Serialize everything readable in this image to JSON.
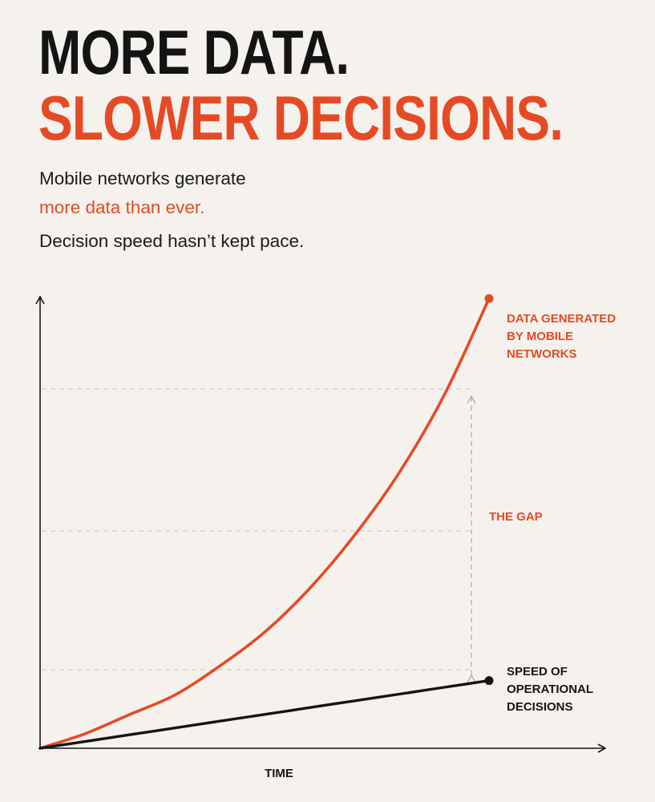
{
  "header": {
    "title_line1": "MORE DATA.",
    "title_line2": "SLOWER DECISIONS."
  },
  "subtitle": {
    "line1": "Mobile networks generate",
    "line2": "more data than ever.",
    "line3": "Decision speed hasn’t kept pace."
  },
  "colors": {
    "background": "#f5f2ee",
    "dark": "#141414",
    "accent": "#e64a24",
    "grid": "#c9c6c2",
    "gap_arrow": "#b5b2ae"
  },
  "chart_data": {
    "type": "line",
    "xlabel": "TIME",
    "ylabel": "",
    "x": [
      0,
      0.1,
      0.2,
      0.3,
      0.4,
      0.5,
      0.6,
      0.7,
      0.8,
      0.9,
      1.0
    ],
    "series": [
      {
        "name": "DATA GENERATED BY MOBILE NETWORKS",
        "label_lines": [
          "DATA GENERATED",
          "BY MOBILE",
          "NETWORKS"
        ],
        "color": "#e64a24",
        "values": [
          0,
          0.03,
          0.07,
          0.11,
          0.17,
          0.24,
          0.33,
          0.44,
          0.57,
          0.73,
          0.93
        ]
      },
      {
        "name": "SPEED OF OPERATIONAL DECISIONS",
        "label_lines": [
          "SPEED OF",
          "OPERATIONAL",
          "DECISIONS"
        ],
        "color": "#141414",
        "values": [
          0,
          0.014,
          0.028,
          0.042,
          0.056,
          0.07,
          0.084,
          0.098,
          0.112,
          0.126,
          0.14
        ]
      }
    ],
    "annotation": {
      "label": "THE GAP"
    },
    "ylim": [
      0,
      1
    ],
    "xlim": [
      0,
      1
    ],
    "grid": true,
    "axis_ticks": false
  }
}
